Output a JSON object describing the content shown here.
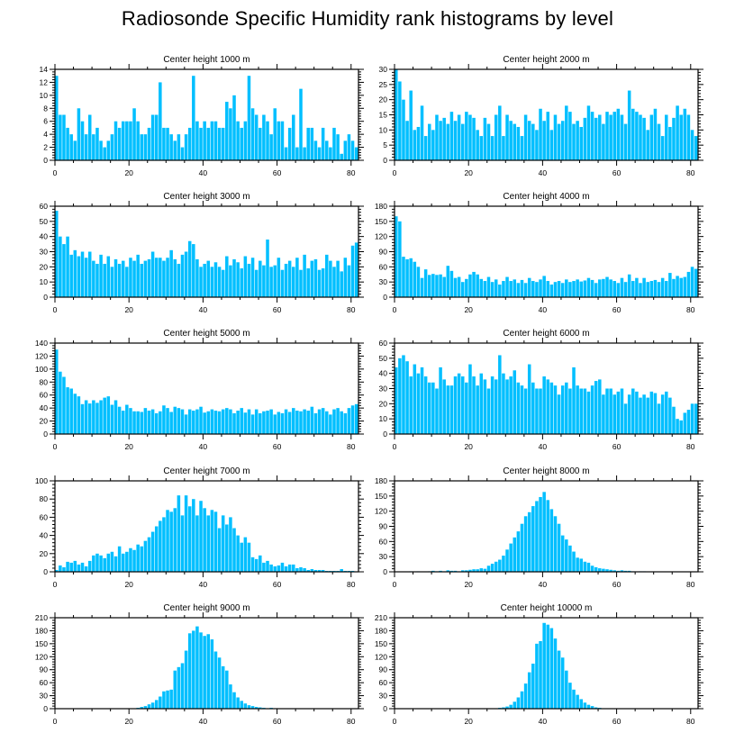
{
  "title": "Radiosonde Specific Humidity rank histograms by level",
  "bar_color": "#00bfff",
  "axis_color": "#000000",
  "chart_data": [
    {
      "type": "bar",
      "title": "Center height 1000 m",
      "xlim": [
        0,
        82
      ],
      "xticks": [
        0,
        20,
        40,
        60,
        80
      ],
      "ylim": [
        0,
        14
      ],
      "yticks": [
        0,
        2,
        4,
        6,
        8,
        10,
        12,
        14
      ],
      "values": [
        13,
        7,
        7,
        5,
        4,
        3,
        8,
        6,
        4,
        7,
        4,
        5,
        3,
        2,
        3,
        4,
        6,
        5,
        6,
        6,
        6,
        8,
        6,
        4,
        4,
        5,
        7,
        7,
        12,
        5,
        5,
        4,
        3,
        4,
        2,
        4,
        5,
        13,
        6,
        5,
        6,
        5,
        6,
        6,
        5,
        5,
        9,
        8,
        10,
        6,
        5,
        6,
        13,
        8,
        7,
        5,
        7,
        6,
        4,
        8,
        6,
        6,
        2,
        5,
        7,
        2,
        11,
        2,
        5,
        5,
        3,
        2,
        5,
        3,
        2,
        5,
        4,
        1,
        3,
        4,
        3,
        2
      ]
    },
    {
      "type": "bar",
      "title": "Center height 2000 m",
      "xlim": [
        0,
        82
      ],
      "xticks": [
        0,
        20,
        40,
        60,
        80
      ],
      "ylim": [
        0,
        30
      ],
      "yticks": [
        0,
        5,
        10,
        15,
        20,
        25,
        30
      ],
      "values": [
        30,
        26,
        20,
        13,
        23,
        10,
        11,
        18,
        8,
        12,
        10,
        15,
        13,
        14,
        12,
        16,
        13,
        15,
        12,
        16,
        15,
        14,
        10,
        8,
        14,
        12,
        8,
        15,
        18,
        8,
        15,
        13,
        12,
        11,
        8,
        15,
        13,
        12,
        10,
        17,
        13,
        16,
        10,
        15,
        12,
        13,
        18,
        16,
        12,
        13,
        11,
        14,
        18,
        16,
        14,
        15,
        12,
        16,
        15,
        16,
        17,
        15,
        12,
        23,
        17,
        16,
        15,
        14,
        10,
        15,
        17,
        12,
        8,
        15,
        11,
        14,
        18,
        15,
        17,
        15,
        10,
        8
      ]
    },
    {
      "type": "bar",
      "title": "Center height 3000 m",
      "xlim": [
        0,
        82
      ],
      "xticks": [
        0,
        20,
        40,
        60,
        80
      ],
      "ylim": [
        0,
        60
      ],
      "yticks": [
        0,
        10,
        20,
        30,
        40,
        50,
        60
      ],
      "values": [
        57,
        40,
        35,
        40,
        28,
        31,
        27,
        30,
        26,
        30,
        24,
        22,
        28,
        22,
        27,
        20,
        25,
        22,
        24,
        20,
        26,
        24,
        28,
        22,
        24,
        25,
        30,
        26,
        26,
        24,
        26,
        31,
        25,
        22,
        28,
        30,
        37,
        35,
        25,
        20,
        22,
        24,
        20,
        23,
        20,
        18,
        27,
        21,
        25,
        23,
        19,
        27,
        22,
        26,
        18,
        24,
        21,
        38,
        20,
        21,
        26,
        18,
        22,
        24,
        20,
        26,
        18,
        28,
        19,
        24,
        25,
        18,
        19,
        28,
        24,
        20,
        24,
        17,
        26,
        21,
        34,
        36
      ]
    },
    {
      "type": "bar",
      "title": "Center height 4000 m",
      "xlim": [
        0,
        82
      ],
      "xticks": [
        0,
        20,
        40,
        60,
        80
      ],
      "ylim": [
        0,
        180
      ],
      "yticks": [
        0,
        30,
        60,
        90,
        120,
        150,
        180
      ],
      "values": [
        160,
        150,
        80,
        75,
        77,
        70,
        60,
        38,
        55,
        44,
        46,
        44,
        45,
        40,
        62,
        52,
        38,
        40,
        30,
        36,
        45,
        50,
        45,
        36,
        32,
        40,
        30,
        35,
        25,
        32,
        40,
        32,
        35,
        28,
        34,
        28,
        38,
        32,
        30,
        35,
        42,
        32,
        25,
        30,
        32,
        28,
        35,
        30,
        32,
        35,
        31,
        33,
        38,
        34,
        28,
        35,
        36,
        40,
        35,
        32,
        28,
        38,
        30,
        45,
        32,
        38,
        28,
        38,
        30,
        32,
        34,
        30,
        38,
        32,
        48,
        36,
        42,
        38,
        40,
        50,
        60,
        56
      ]
    },
    {
      "type": "bar",
      "title": "Center height 5000 m",
      "xlim": [
        0,
        82
      ],
      "xticks": [
        0,
        20,
        40,
        60,
        80
      ],
      "ylim": [
        0,
        140
      ],
      "yticks": [
        0,
        20,
        40,
        60,
        80,
        100,
        120,
        140
      ],
      "values": [
        130,
        96,
        88,
        72,
        70,
        62,
        58,
        46,
        52,
        47,
        52,
        48,
        52,
        56,
        58,
        45,
        52,
        42,
        36,
        45,
        40,
        35,
        35,
        34,
        40,
        36,
        38,
        32,
        35,
        44,
        40,
        34,
        42,
        40,
        38,
        30,
        38,
        36,
        38,
        42,
        33,
        35,
        38,
        36,
        35,
        38,
        40,
        38,
        32,
        36,
        40,
        33,
        38,
        30,
        38,
        32,
        35,
        36,
        38,
        30,
        34,
        32,
        38,
        34,
        40,
        36,
        35,
        38,
        36,
        42,
        32,
        38,
        40,
        35,
        30,
        38,
        40,
        35,
        32,
        40,
        44,
        46
      ]
    },
    {
      "type": "bar",
      "title": "Center height 6000 m",
      "xlim": [
        0,
        82
      ],
      "xticks": [
        0,
        20,
        40,
        60,
        80
      ],
      "ylim": [
        0,
        60
      ],
      "yticks": [
        0,
        10,
        20,
        30,
        40,
        50,
        60
      ],
      "values": [
        44,
        50,
        52,
        48,
        38,
        46,
        40,
        44,
        38,
        34,
        34,
        30,
        44,
        36,
        32,
        32,
        38,
        40,
        38,
        34,
        46,
        38,
        32,
        40,
        36,
        30,
        38,
        36,
        52,
        40,
        36,
        38,
        42,
        34,
        32,
        30,
        46,
        34,
        30,
        30,
        38,
        36,
        34,
        32,
        26,
        32,
        34,
        30,
        44,
        32,
        30,
        30,
        28,
        32,
        35,
        36,
        26,
        30,
        30,
        26,
        28,
        30,
        20,
        26,
        30,
        28,
        24,
        26,
        24,
        28,
        27,
        20,
        26,
        28,
        24,
        18,
        10,
        9,
        14,
        16,
        20,
        20
      ]
    },
    {
      "type": "bar",
      "title": "Center height 7000 m",
      "xlim": [
        0,
        82
      ],
      "xticks": [
        0,
        20,
        40,
        60,
        80
      ],
      "ylim": [
        0,
        100
      ],
      "yticks": [
        0,
        20,
        40,
        60,
        80,
        100
      ],
      "values": [
        2,
        7,
        5,
        11,
        10,
        12,
        8,
        10,
        6,
        12,
        18,
        20,
        18,
        15,
        20,
        22,
        17,
        28,
        20,
        22,
        26,
        24,
        30,
        28,
        34,
        38,
        44,
        50,
        56,
        60,
        68,
        66,
        70,
        84,
        62,
        84,
        72,
        80,
        62,
        78,
        70,
        62,
        68,
        66,
        48,
        62,
        52,
        60,
        48,
        40,
        32,
        38,
        32,
        16,
        14,
        18,
        10,
        12,
        8,
        6,
        7,
        10,
        6,
        8,
        8,
        4,
        5,
        4,
        2,
        3,
        2,
        2,
        2,
        1,
        1,
        1,
        1,
        3,
        1,
        1,
        1,
        0
      ]
    },
    {
      "type": "bar",
      "title": "Center height 8000 m",
      "xlim": [
        0,
        82
      ],
      "xticks": [
        0,
        20,
        40,
        60,
        80
      ],
      "ylim": [
        0,
        180
      ],
      "yticks": [
        0,
        30,
        60,
        90,
        120,
        150,
        180
      ],
      "values": [
        0,
        0,
        0,
        0,
        1,
        0,
        1,
        0,
        0,
        1,
        2,
        1,
        2,
        1,
        3,
        2,
        2,
        1,
        3,
        3,
        4,
        5,
        5,
        7,
        6,
        12,
        16,
        20,
        24,
        32,
        44,
        56,
        68,
        80,
        95,
        110,
        118,
        130,
        140,
        148,
        158,
        142,
        124,
        110,
        95,
        72,
        64,
        52,
        40,
        28,
        26,
        20,
        18,
        12,
        9,
        7,
        6,
        5,
        4,
        3,
        2,
        3,
        2,
        2,
        1,
        0,
        1,
        1,
        0,
        0,
        0,
        0,
        0,
        0,
        0,
        0,
        0,
        0,
        0,
        0,
        0,
        0
      ]
    },
    {
      "type": "bar",
      "title": "Center height 9000 m",
      "xlim": [
        0,
        82
      ],
      "xticks": [
        0,
        20,
        40,
        60,
        80
      ],
      "ylim": [
        0,
        210
      ],
      "yticks": [
        0,
        30,
        60,
        90,
        120,
        150,
        180,
        210
      ],
      "values": [
        0,
        0,
        0,
        0,
        0,
        0,
        0,
        0,
        0,
        0,
        0,
        0,
        0,
        0,
        0,
        0,
        0,
        0,
        0,
        0,
        1,
        1,
        2,
        4,
        6,
        10,
        14,
        20,
        28,
        40,
        42,
        44,
        88,
        96,
        105,
        134,
        174,
        180,
        190,
        176,
        168,
        172,
        160,
        132,
        118,
        98,
        88,
        56,
        38,
        26,
        18,
        12,
        8,
        6,
        4,
        3,
        2,
        1,
        2,
        1,
        0,
        0,
        0,
        0,
        0,
        0,
        0,
        0,
        0,
        0,
        0,
        0,
        0,
        0,
        0,
        0,
        0,
        0,
        0,
        0,
        0,
        0
      ]
    },
    {
      "type": "bar",
      "title": "Center height 10000 m",
      "xlim": [
        0,
        82
      ],
      "xticks": [
        0,
        20,
        40,
        60,
        80
      ],
      "ylim": [
        0,
        210
      ],
      "yticks": [
        0,
        30,
        60,
        90,
        120,
        150,
        180,
        210
      ],
      "values": [
        0,
        0,
        0,
        0,
        0,
        0,
        0,
        0,
        0,
        0,
        0,
        0,
        0,
        0,
        0,
        0,
        0,
        0,
        0,
        0,
        0,
        0,
        0,
        0,
        0,
        0,
        0,
        1,
        2,
        3,
        5,
        9,
        16,
        26,
        40,
        58,
        84,
        104,
        150,
        156,
        198,
        194,
        186,
        162,
        134,
        118,
        88,
        60,
        44,
        32,
        22,
        14,
        9,
        6,
        3,
        2,
        1,
        1,
        0,
        0,
        0,
        0,
        0,
        0,
        0,
        0,
        0,
        0,
        0,
        0,
        0,
        0,
        0,
        0,
        0,
        0,
        0,
        0,
        0,
        0,
        0,
        0
      ]
    }
  ]
}
